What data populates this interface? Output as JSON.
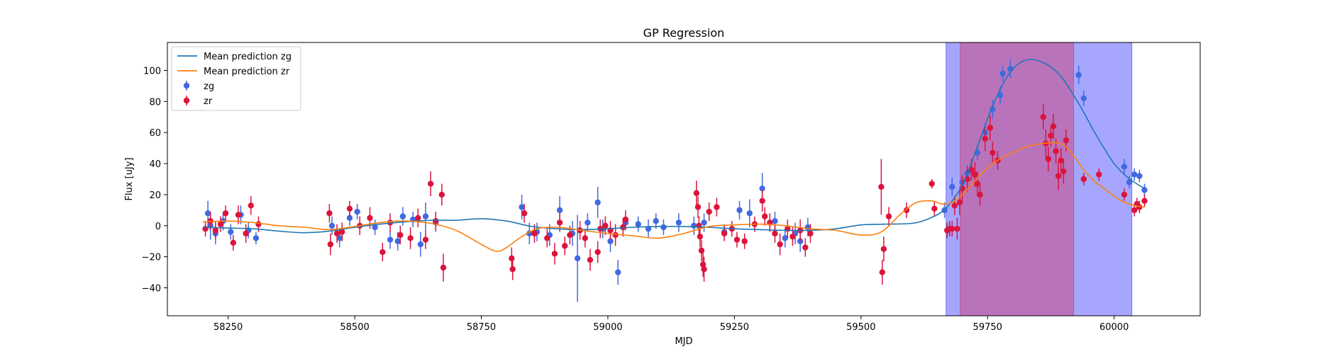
{
  "chart_data": {
    "type": "scatter",
    "title": "GP Regression",
    "xlabel": "MJD",
    "ylabel": "Flux [uJy]",
    "xlim": [
      58130,
      60170
    ],
    "ylim": [
      -58,
      118
    ],
    "xticks": [
      58250,
      58500,
      58750,
      59000,
      59250,
      59500,
      59750,
      60000
    ],
    "yticks": [
      -40,
      -20,
      0,
      20,
      40,
      60,
      80,
      100
    ],
    "legend_position": "top-left",
    "colors": {
      "zg": "#4169e1",
      "zr": "#dc143c",
      "mean_zg": "#1f77b4",
      "mean_zr": "#ff7f0e",
      "band_zg": "#0000ff",
      "band_zr": "#dc143c"
    },
    "shaded_regions": [
      {
        "name": "zg",
        "x0": 59668,
        "x1": 60035
      },
      {
        "name": "zr",
        "x0": 59696,
        "x1": 59920
      }
    ],
    "series": [
      {
        "name": "Mean prediction zg",
        "kind": "line",
        "x": [
          58200,
          58250,
          58300,
          58350,
          58400,
          58450,
          58500,
          58550,
          58600,
          58650,
          58700,
          58750,
          58800,
          58850,
          58900,
          58950,
          59000,
          59050,
          59100,
          59150,
          59200,
          59250,
          59300,
          59350,
          59400,
          59450,
          59500,
          59550,
          59600,
          59630,
          59660,
          59680,
          59700,
          59720,
          59740,
          59760,
          59780,
          59800,
          59820,
          59840,
          59860,
          59880,
          59900,
          59920,
          59940,
          59960,
          59980,
          60000,
          60020,
          60040,
          60060
        ],
        "y": [
          -1,
          -1.5,
          -2,
          -3.5,
          -4.5,
          -3.5,
          -1,
          1,
          2.5,
          3.5,
          3.5,
          4.5,
          3,
          -0.5,
          -2,
          -2.5,
          -2,
          -1,
          -0.5,
          -0.5,
          -1,
          -2,
          -2.5,
          -3,
          -3,
          -2,
          0.5,
          1,
          1.5,
          4,
          9,
          16,
          26,
          42,
          60,
          77,
          91,
          101,
          106,
          107,
          105,
          101,
          94,
          84,
          73,
          61,
          50,
          40,
          33,
          28,
          24
        ]
      },
      {
        "name": "Mean prediction zr",
        "kind": "line",
        "x": [
          58200,
          58250,
          58300,
          58350,
          58400,
          58450,
          58500,
          58550,
          58600,
          58650,
          58700,
          58750,
          58780,
          58800,
          58830,
          58860,
          58900,
          58950,
          59000,
          59050,
          59100,
          59150,
          59200,
          59250,
          59300,
          59350,
          59400,
          59450,
          59500,
          59540,
          59580,
          59610,
          59640,
          59660,
          59680,
          59700,
          59720,
          59740,
          59760,
          59780,
          59800,
          59820,
          59840,
          59860,
          59880,
          59900,
          59920,
          59940,
          59960,
          59980,
          60000,
          60020,
          60040,
          60060
        ],
        "y": [
          2.5,
          3,
          2,
          0,
          -1,
          -2.5,
          -0.5,
          2,
          3,
          1.5,
          -3,
          -12,
          -16.5,
          -14,
          -7,
          -2,
          -1,
          -3,
          -5,
          -6.5,
          -8,
          -5,
          -0.5,
          0.5,
          1,
          0,
          -2,
          -3,
          -6,
          -4,
          8,
          15,
          16,
          14,
          15,
          20,
          27,
          34,
          40,
          44,
          47,
          50,
          52,
          53,
          53.5,
          52,
          45,
          36,
          29,
          24,
          19,
          15,
          13,
          12
        ]
      },
      {
        "name": "zg",
        "kind": "errorbar",
        "x": [
          58210,
          58215,
          58225,
          58240,
          58255,
          58275,
          58290,
          58305,
          58455,
          58470,
          58490,
          58505,
          58540,
          58570,
          58585,
          58595,
          58615,
          58630,
          58640,
          58660,
          58830,
          58845,
          58860,
          58885,
          58905,
          58930,
          58940,
          58960,
          58980,
          58990,
          59005,
          59020,
          59035,
          59060,
          59080,
          59095,
          59110,
          59140,
          59170,
          59190,
          59230,
          59260,
          59280,
          59305,
          59330,
          59350,
          59370,
          59380,
          59395,
          59665,
          59680,
          59700,
          59710,
          59730,
          59745,
          59760,
          59775,
          59780,
          59795,
          59930,
          59940,
          60020,
          60030,
          60040,
          60050,
          60060
        ],
        "y": [
          8,
          0,
          -5,
          3,
          -4,
          7,
          -3,
          -8,
          0,
          -8,
          5,
          9,
          -1,
          -9,
          -10,
          6,
          4,
          -12,
          6,
          2,
          12,
          -5,
          -4,
          -6,
          10,
          -5,
          -21,
          2,
          15,
          -2,
          -10,
          -30,
          2,
          1,
          -2,
          3,
          -1,
          2,
          0,
          2,
          -4,
          10,
          8,
          24,
          3,
          -8,
          -5,
          -10,
          -1,
          10,
          25,
          28,
          34,
          47,
          60,
          75,
          84,
          98,
          101,
          97,
          82,
          38,
          28,
          33,
          32,
          23
        ],
        "err": [
          8,
          9,
          7,
          6,
          5,
          6,
          5,
          4,
          6,
          6,
          5,
          5,
          5,
          6,
          6,
          6,
          5,
          8,
          9,
          6,
          8,
          7,
          6,
          7,
          9,
          8,
          28,
          6,
          10,
          6,
          7,
          8,
          5,
          5,
          6,
          5,
          5,
          6,
          6,
          6,
          5,
          6,
          9,
          10,
          6,
          6,
          7,
          7,
          6,
          5,
          6,
          5,
          5,
          5,
          6,
          6,
          6,
          5,
          6,
          6,
          5,
          5,
          4,
          4,
          4,
          4
        ]
      },
      {
        "name": "zr",
        "kind": "errorbar",
        "x": [
          58205,
          58215,
          58225,
          58235,
          58245,
          58260,
          58270,
          58285,
          58295,
          58310,
          58450,
          58452,
          58465,
          58475,
          58490,
          58510,
          58530,
          58555,
          58570,
          58590,
          58610,
          58625,
          58640,
          58650,
          58660,
          58672,
          58675,
          58810,
          58812,
          58835,
          58855,
          58880,
          58895,
          58905,
          58915,
          58925,
          58945,
          58955,
          58965,
          58980,
          58985,
          58995,
          59005,
          59015,
          59030,
          59035,
          59175,
          59178,
          59180,
          59182,
          59185,
          59188,
          59190,
          59200,
          59215,
          59230,
          59245,
          59255,
          59270,
          59290,
          59305,
          59310,
          59320,
          59330,
          59340,
          59355,
          59365,
          59380,
          59390,
          59400,
          59540,
          59542,
          59545,
          59555,
          59590,
          59640,
          59645,
          59670,
          59675,
          59680,
          59685,
          59690,
          59695,
          59700,
          59710,
          59718,
          59725,
          59730,
          59735,
          59745,
          59755,
          59760,
          59770,
          59860,
          59865,
          59870,
          59875,
          59880,
          59885,
          59890,
          59895,
          59900,
          59905,
          59940,
          59970,
          60020,
          60040,
          60045,
          60050,
          60060
        ],
        "y": [
          -2,
          3,
          -3,
          1,
          8,
          -11,
          7,
          -5,
          13,
          1,
          8,
          -12,
          -5,
          -4,
          11,
          0,
          5,
          -17,
          2,
          -6,
          -8,
          5,
          -9,
          27,
          3,
          20,
          -27,
          -21,
          -28,
          8,
          -5,
          -8,
          -18,
          2,
          -13,
          -6,
          -3,
          -8,
          -22,
          -17,
          -2,
          0,
          -3,
          -6,
          -1,
          4,
          21,
          12,
          0,
          -7,
          -16,
          -25,
          -28,
          9,
          12,
          -5,
          -2,
          -9,
          -10,
          1,
          16,
          6,
          2,
          -5,
          -12,
          -2,
          -7,
          -3,
          -14,
          -5,
          25,
          -30,
          -15,
          6,
          10,
          27,
          11,
          -3,
          -2,
          -2,
          13,
          -2,
          15,
          24,
          30,
          36,
          33,
          27,
          20,
          56,
          63,
          47,
          42,
          70,
          53,
          43,
          58,
          64,
          48,
          32,
          42,
          35,
          55,
          30,
          33,
          20,
          10,
          14,
          12,
          16
        ],
        "err": [
          5,
          6,
          6,
          5,
          5,
          5,
          6,
          6,
          6,
          5,
          6,
          7,
          6,
          6,
          5,
          6,
          7,
          6,
          6,
          6,
          7,
          6,
          6,
          8,
          6,
          7,
          9,
          7,
          7,
          6,
          6,
          6,
          7,
          6,
          6,
          6,
          6,
          6,
          7,
          7,
          6,
          6,
          6,
          7,
          6,
          6,
          8,
          7,
          6,
          7,
          7,
          8,
          8,
          6,
          6,
          5,
          5,
          5,
          5,
          5,
          7,
          6,
          6,
          6,
          7,
          6,
          6,
          7,
          6,
          6,
          18,
          8,
          8,
          6,
          5,
          3,
          5,
          5,
          5,
          5,
          6,
          7,
          8,
          8,
          8,
          7,
          8,
          8,
          7,
          8,
          8,
          7,
          6,
          8,
          9,
          8,
          7,
          8,
          8,
          9,
          8,
          8,
          7,
          4,
          4,
          4,
          4,
          4,
          4,
          4
        ]
      }
    ]
  }
}
